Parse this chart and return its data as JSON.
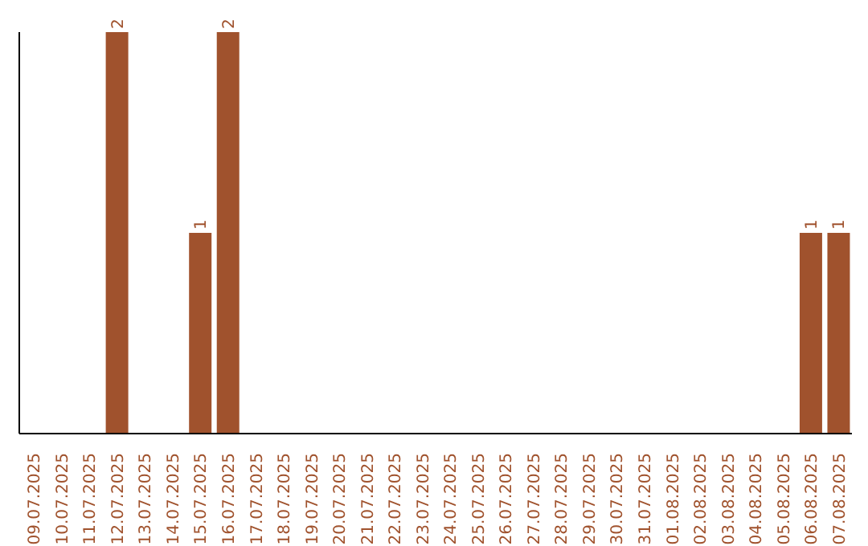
{
  "chart_data": {
    "type": "bar",
    "categories": [
      "09.07.2025",
      "10.07.2025",
      "11.07.2025",
      "12.07.2025",
      "13.07.2025",
      "14.07.2025",
      "15.07.2025",
      "16.07.2025",
      "17.07.2025",
      "18.07.2025",
      "19.07.2025",
      "20.07.2025",
      "21.07.2025",
      "22.07.2025",
      "23.07.2025",
      "24.07.2025",
      "25.07.2025",
      "26.07.2025",
      "27.07.2025",
      "28.07.2025",
      "29.07.2025",
      "30.07.2025",
      "31.07.2025",
      "01.08.2025",
      "02.08.2025",
      "03.08.2025",
      "04.08.2025",
      "05.08.2025",
      "06.08.2025",
      "07.08.2025"
    ],
    "values": [
      0,
      0,
      0,
      2,
      0,
      0,
      1,
      2,
      0,
      0,
      0,
      0,
      0,
      0,
      0,
      0,
      0,
      0,
      0,
      0,
      0,
      0,
      0,
      0,
      0,
      0,
      0,
      0,
      1,
      1
    ],
    "value_labels": [
      null,
      null,
      null,
      "2",
      null,
      null,
      "1",
      "2",
      null,
      null,
      null,
      null,
      null,
      null,
      null,
      null,
      null,
      null,
      null,
      null,
      null,
      null,
      null,
      null,
      null,
      null,
      null,
      null,
      "1",
      "1"
    ],
    "color": "#a0522d",
    "tick_labels": "x",
    "grid": false,
    "legend": false
  }
}
